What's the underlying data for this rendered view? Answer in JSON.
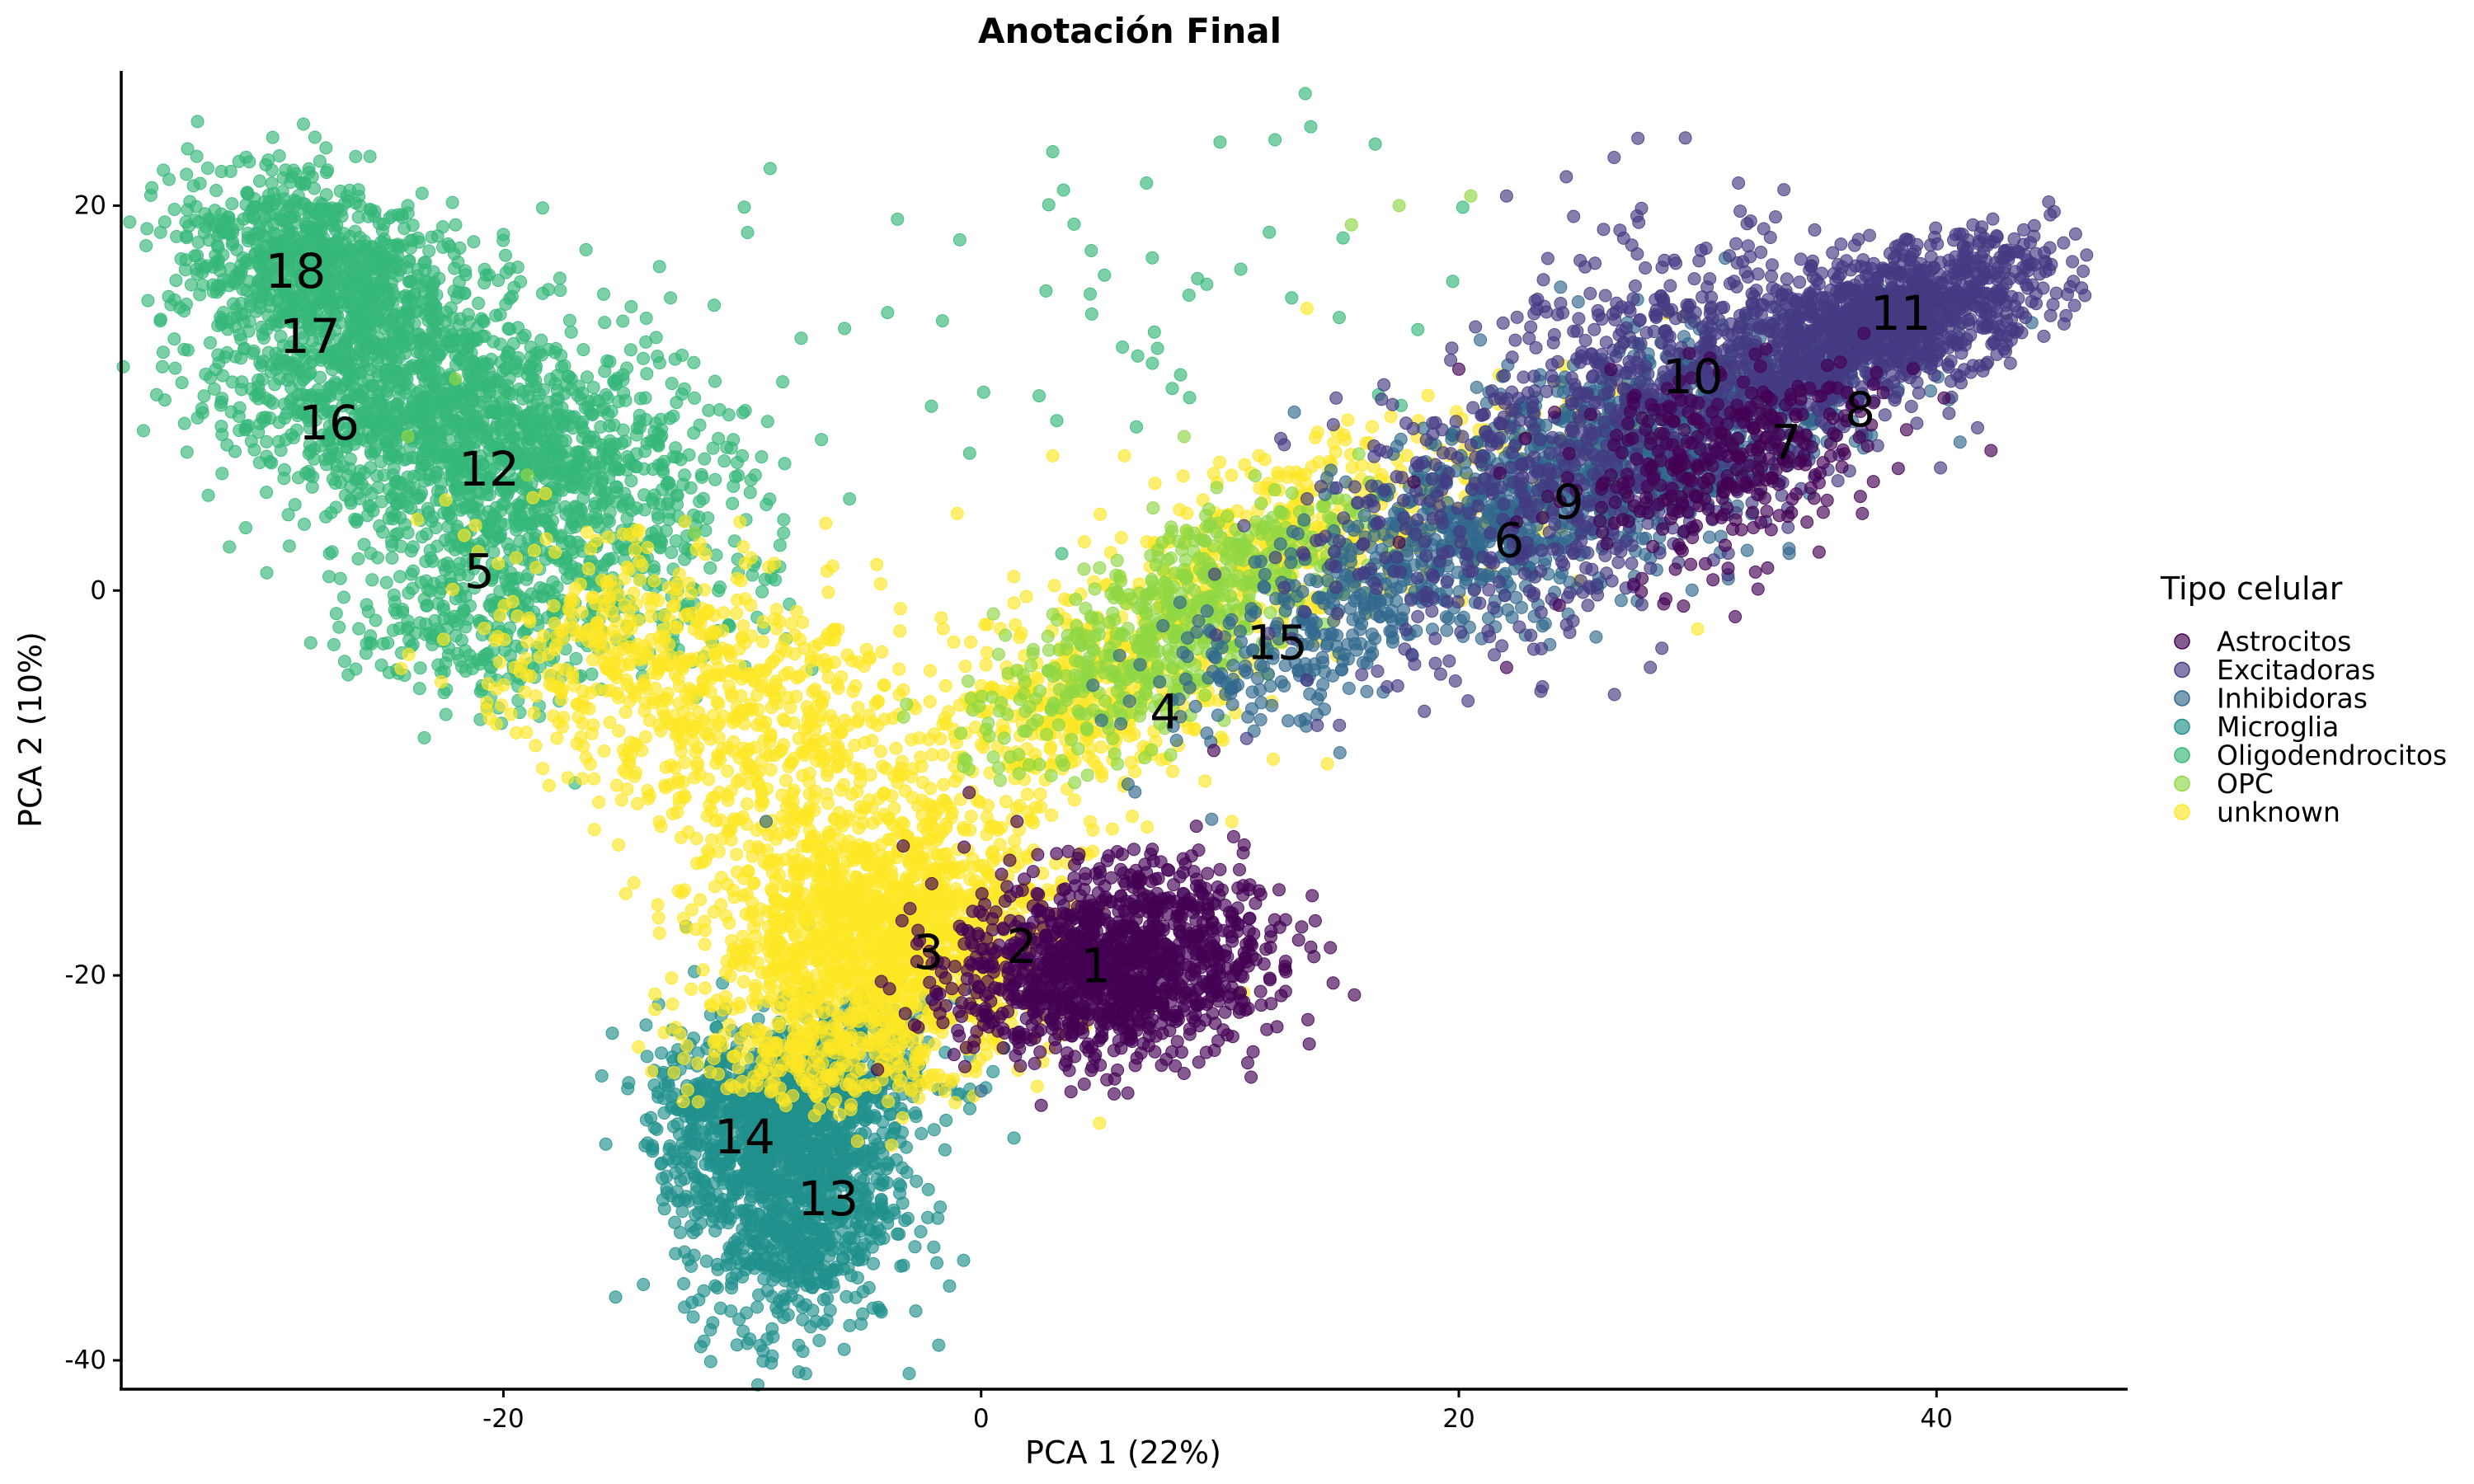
{
  "chart_data": {
    "type": "scatter",
    "title": "Anotación Final",
    "xlabel": "PCA 1 (22%)",
    "ylabel": "PCA 2 (10%)",
    "xlim": [
      -36,
      48
    ],
    "ylim": [
      -41.5,
      27
    ],
    "x_ticks": [
      -20,
      0,
      20,
      40
    ],
    "y_ticks": [
      20,
      0,
      -20,
      -40
    ],
    "grid": false,
    "legend": {
      "title": "Tipo celular",
      "placement": "right",
      "entries": [
        {
          "name": "Astrocitos",
          "color": "#440154"
        },
        {
          "name": "Excitadoras",
          "color": "#443A83"
        },
        {
          "name": "Inhibidoras",
          "color": "#31688E"
        },
        {
          "name": "Microglia",
          "color": "#21908C"
        },
        {
          "name": "Oligodendrocitos",
          "color": "#35B779"
        },
        {
          "name": "OPC",
          "color": "#8FD744"
        },
        {
          "name": "unknown",
          "color": "#FDE725"
        }
      ]
    },
    "point_opacity": 0.65,
    "series": [
      {
        "name": "Oligodendrocitos",
        "color": "#35B779",
        "clusters": [
          {
            "cx": -28,
            "cy": 17,
            "sx": 3.0,
            "sy": 2.0,
            "rot": -35,
            "n": 700
          },
          {
            "cx": -24,
            "cy": 10,
            "sx": 5.0,
            "sy": 3.2,
            "rot": -35,
            "n": 1400
          },
          {
            "cx": -18,
            "cy": 6,
            "sx": 3.5,
            "sy": 3.5,
            "rot": -35,
            "n": 500
          },
          {
            "cx": -21,
            "cy": -1,
            "sx": 2.6,
            "sy": 2.6,
            "rot": 0,
            "n": 300
          },
          {
            "cx": -13,
            "cy": 2,
            "sx": 2.5,
            "sy": 3.5,
            "rot": 0,
            "n": 150
          },
          {
            "cx": 6,
            "cy": 14,
            "sx": 9.0,
            "sy": 5.0,
            "rot": 0,
            "n": 55
          }
        ],
        "points": [
          [
            -32,
            15.5
          ],
          [
            -31.5,
            19.4
          ],
          [
            -30,
            20.2
          ],
          [
            -28,
            21.5
          ],
          [
            -26,
            20
          ],
          [
            -24,
            20
          ],
          [
            -22,
            19
          ],
          [
            -20,
            18.5
          ],
          [
            -15,
            14
          ],
          [
            -12,
            10
          ],
          [
            -10,
            7
          ],
          [
            -25,
            6
          ],
          [
            -24,
            3
          ],
          [
            -22.5,
            -1
          ],
          [
            -20.5,
            -4
          ],
          [
            -18.5,
            -6
          ],
          [
            -17,
            -10
          ],
          [
            13.8,
            24.1
          ],
          [
            16.5,
            23.2
          ],
          [
            10,
            23.3
          ],
          [
            3,
            22.8
          ]
        ]
      },
      {
        "name": "Microglia",
        "color": "#21908C",
        "clusters": [
          {
            "cx": -8,
            "cy": -31,
            "sx": 2.2,
            "sy": 3.8,
            "rot": 0,
            "n": 1100
          },
          {
            "cx": -10,
            "cy": -27,
            "sx": 2.0,
            "sy": 2.0,
            "rot": 0,
            "n": 400
          },
          {
            "cx": -5,
            "cy": -25,
            "sx": 2.0,
            "sy": 2.0,
            "rot": 0,
            "n": 250
          }
        ],
        "points": [
          [
            -8.5,
            -37.5
          ],
          [
            -10.5,
            -35
          ],
          [
            -6.5,
            -36
          ],
          [
            -11.5,
            -26.5
          ],
          [
            -13.5,
            -21.5
          ],
          [
            -12,
            -19.8
          ],
          [
            -1.5,
            -24
          ],
          [
            0.5,
            -25
          ],
          [
            -3.3,
            -30
          ],
          [
            -4.6,
            -32.5
          ]
        ]
      },
      {
        "name": "unknown",
        "color": "#FDE725",
        "clusters": [
          {
            "cx": -4,
            "cy": -18,
            "sx": 3.5,
            "sy": 3.2,
            "rot": 0,
            "n": 1500
          },
          {
            "cx": -14,
            "cy": -4,
            "sx": 4.0,
            "sy": 3.0,
            "rot": -35,
            "n": 450
          },
          {
            "cx": -8,
            "cy": -8,
            "sx": 3.5,
            "sy": 3.5,
            "rot": -35,
            "n": 350
          },
          {
            "cx": 4,
            "cy": -6,
            "sx": 3.5,
            "sy": 2.5,
            "rot": 35,
            "n": 400
          },
          {
            "cx": 12,
            "cy": 2,
            "sx": 4.5,
            "sy": 2.2,
            "rot": 35,
            "n": 350
          },
          {
            "cx": 22,
            "cy": 6,
            "sx": 5.0,
            "sy": 2.0,
            "rot": 25,
            "n": 150
          },
          {
            "cx": -7,
            "cy": -24,
            "sx": 2.5,
            "sy": 1.5,
            "rot": 0,
            "n": 200
          }
        ],
        "points": [
          [
            -13.5,
            -17
          ],
          [
            -9,
            -12
          ],
          [
            -1,
            4
          ],
          [
            3,
            7
          ],
          [
            6,
            7
          ],
          [
            10.5,
            -12
          ],
          [
            14.5,
            -9
          ],
          [
            30,
            -2
          ],
          [
            25,
            0.5
          ],
          [
            -6.5,
            3.5
          ]
        ]
      },
      {
        "name": "OPC",
        "color": "#8FD744",
        "clusters": [
          {
            "cx": 6,
            "cy": -4,
            "sx": 3.5,
            "sy": 2.0,
            "rot": 35,
            "n": 350
          },
          {
            "cx": 11,
            "cy": 1.5,
            "sx": 3.0,
            "sy": 1.8,
            "rot": 35,
            "n": 250
          }
        ],
        "points": [
          [
            -24,
            8
          ],
          [
            -22,
            11
          ],
          [
            -19,
            6
          ],
          [
            -12,
            3
          ],
          [
            8.5,
            8
          ],
          [
            17.5,
            20
          ],
          [
            20.5,
            20.5
          ],
          [
            15.5,
            19
          ]
        ]
      },
      {
        "name": "Inhibidoras",
        "color": "#31688E",
        "clusters": [
          {
            "cx": 27,
            "cy": 7,
            "sx": 5.5,
            "sy": 2.5,
            "rot": 30,
            "n": 1000
          },
          {
            "cx": 19,
            "cy": 2,
            "sx": 4.0,
            "sy": 2.0,
            "rot": 35,
            "n": 300
          },
          {
            "cx": 13,
            "cy": -3,
            "sx": 3.5,
            "sy": 2.0,
            "rot": 35,
            "n": 200
          }
        ],
        "points": [
          [
            0,
            -26
          ],
          [
            -9,
            -12
          ],
          [
            3,
            -22.5
          ],
          [
            25,
            15
          ],
          [
            26,
            12
          ]
        ]
      },
      {
        "name": "Excitadoras",
        "color": "#443A83",
        "clusters": [
          {
            "cx": 38,
            "cy": 14,
            "sx": 3.5,
            "sy": 1.6,
            "rot": 25,
            "n": 1200
          },
          {
            "cx": 30,
            "cy": 11,
            "sx": 4.0,
            "sy": 3.5,
            "rot": 25,
            "n": 600
          },
          {
            "cx": 22,
            "cy": 4,
            "sx": 5.0,
            "sy": 3.5,
            "rot": 35,
            "n": 400
          }
        ],
        "points": [
          [
            27.5,
            23.5
          ],
          [
            26.5,
            22.5
          ],
          [
            24.5,
            21.5
          ],
          [
            22,
            20.5
          ],
          [
            36,
            18
          ],
          [
            38.5,
            16.5
          ],
          [
            44,
            17
          ],
          [
            23.5,
            -5
          ],
          [
            28.5,
            -3
          ],
          [
            15,
            -7
          ],
          [
            17,
            -5
          ],
          [
            13,
            -2.5
          ]
        ]
      },
      {
        "name": "Astrocitos",
        "color": "#440154",
        "clusters": [
          {
            "cx": 5.5,
            "cy": -19.5,
            "sx": 3.2,
            "sy": 2.4,
            "rot": 10,
            "n": 1300
          },
          {
            "cx": 31,
            "cy": 7,
            "sx": 3.5,
            "sy": 2.5,
            "rot": 30,
            "n": 350
          }
        ],
        "points": [
          [
            10.5,
            -18
          ],
          [
            12.5,
            -17.5
          ],
          [
            10,
            -14.5
          ],
          [
            1.5,
            -12
          ],
          [
            -0.5,
            -10.5
          ],
          [
            20,
            11.5
          ],
          [
            22,
            -4
          ],
          [
            17.5,
            2.5
          ]
        ]
      }
    ],
    "cluster_labels": [
      {
        "text": "1",
        "x": 4.8,
        "y": -19.5
      },
      {
        "text": "2",
        "x": 1.7,
        "y": -18.5
      },
      {
        "text": "3",
        "x": -2.2,
        "y": -18.8
      },
      {
        "text": "4",
        "x": 7.7,
        "y": -6.3
      },
      {
        "text": "5",
        "x": -21,
        "y": 1
      },
      {
        "text": "6",
        "x": 22.1,
        "y": 2.6
      },
      {
        "text": "7",
        "x": 33.7,
        "y": 7.7
      },
      {
        "text": "8",
        "x": 36.8,
        "y": 9.4
      },
      {
        "text": "9",
        "x": 24.6,
        "y": 4.6
      },
      {
        "text": "10",
        "x": 29.8,
        "y": 11.1
      },
      {
        "text": "11",
        "x": 38.5,
        "y": 14.4
      },
      {
        "text": "12",
        "x": -20.6,
        "y": 6.3
      },
      {
        "text": "13",
        "x": -6.4,
        "y": -31.6
      },
      {
        "text": "14",
        "x": -9.9,
        "y": -28.4
      },
      {
        "text": "15",
        "x": 12.4,
        "y": -2.7
      },
      {
        "text": "16",
        "x": -27.3,
        "y": 8.7
      },
      {
        "text": "17",
        "x": -28.1,
        "y": 13.2
      },
      {
        "text": "18",
        "x": -28.7,
        "y": 16.6
      }
    ]
  }
}
